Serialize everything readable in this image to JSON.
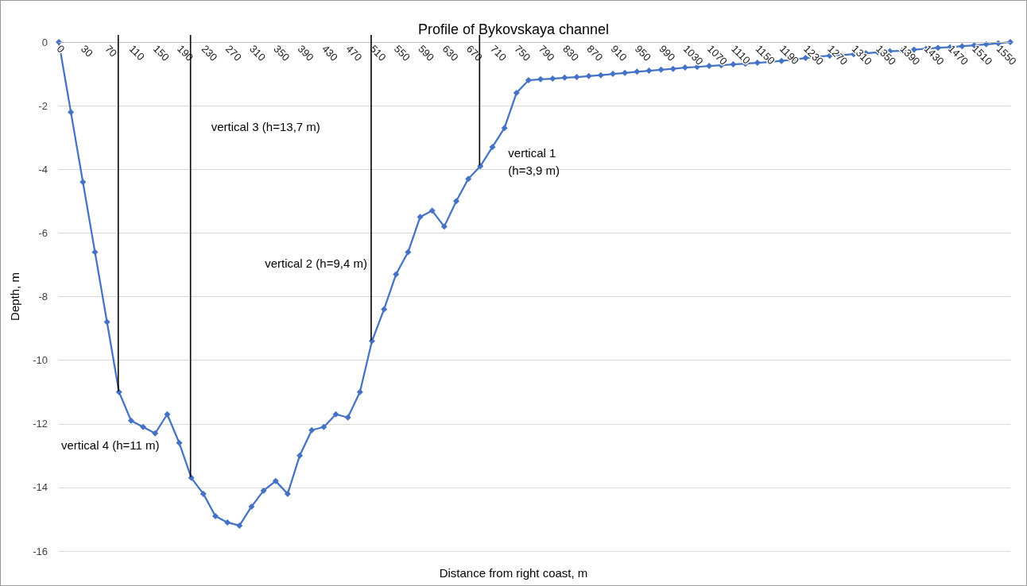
{
  "chart_data": {
    "type": "line",
    "title": "Profile of Bykovskaya channel",
    "xlabel": "Distance from right coast, m",
    "ylabel": "Depth, m",
    "categories": [
      "0",
      null,
      "30",
      null,
      "70",
      null,
      "110",
      null,
      "150",
      null,
      "190",
      null,
      "230",
      null,
      "270",
      null,
      "310",
      null,
      "350",
      null,
      "390",
      null,
      "430",
      null,
      "470",
      null,
      "510",
      null,
      "550",
      null,
      "590",
      null,
      "630",
      null,
      "670",
      null,
      "710",
      null,
      "750",
      null,
      "790",
      null,
      "830",
      null,
      "870",
      null,
      "910",
      null,
      "950",
      null,
      "990",
      null,
      "1030",
      null,
      "1070",
      null,
      "1110",
      null,
      "1150",
      null,
      "1190",
      null,
      "1230",
      null,
      "1270",
      null,
      "1310",
      null,
      "1350",
      null,
      "1390",
      null,
      "1430",
      null,
      "1470",
      null,
      "1510",
      null,
      "1550",
      null
    ],
    "series": [
      {
        "color": "#4472c4",
        "values": [
          0,
          -2.2,
          -4.4,
          -6.6,
          -8.8,
          -11,
          -11.9,
          -12.1,
          -12.3,
          -11.7,
          -12.6,
          -13.7,
          -14.2,
          -14.9,
          -15.1,
          -15.2,
          -14.6,
          -14.1,
          -13.8,
          -14.2,
          -13.0,
          -12.2,
          -12.1,
          -11.7,
          -11.8,
          -11.0,
          -9.4,
          -8.4,
          -7.3,
          -6.6,
          -5.5,
          -5.3,
          -5.8,
          -5.0,
          -4.3,
          -3.9,
          -3.3,
          -2.7,
          -1.6,
          -1.2,
          -1.17,
          -1.15,
          -1.12,
          -1.1,
          -1.07,
          -1.04,
          -1.0,
          -0.97,
          -0.93,
          -0.9,
          -0.87,
          -0.84,
          -0.8,
          -0.78,
          -0.75,
          -0.73,
          -0.7,
          -0.68,
          -0.65,
          -0.63,
          -0.59,
          -0.55,
          -0.5,
          -0.46,
          -0.43,
          -0.41,
          -0.38,
          -0.35,
          -0.32,
          -0.29,
          -0.27,
          -0.24,
          -0.21,
          -0.18,
          -0.16,
          -0.13,
          -0.1,
          -0.07,
          -0.04,
          0
        ]
      }
    ],
    "ylim": [
      -16,
      0
    ],
    "yticks": [
      -16,
      -14,
      -12,
      -10,
      -8,
      -6,
      -4,
      -2,
      0
    ],
    "annotations": [
      "vertical 1 (h=3,9 m)",
      "vertical 2 (h=9,4 m)",
      "vertical 3 (h=13,7 m)",
      "vertical 4 (h=11 m)"
    ],
    "grid": "y",
    "marker": "diamond",
    "line_style": "solid"
  }
}
